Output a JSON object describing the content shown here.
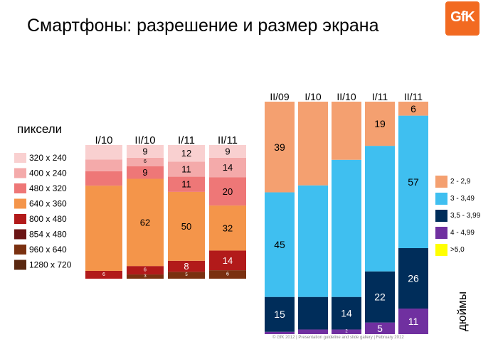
{
  "title": "Смартфоны: разрешение и размер экрана",
  "logo_text": "GfK",
  "footer": "© GfK 2012 | Presentation guideline and slide gallery | February 2012",
  "chart_data": [
    {
      "type": "bar",
      "stacked": true,
      "title": "пиксели",
      "categories": [
        "I/10",
        "II/10",
        "I/11",
        "II/11"
      ],
      "legend_position": "left",
      "series": [
        {
          "name": "1280 x 720",
          "color": "#5a2810",
          "values": [
            0,
            0,
            0,
            0
          ]
        },
        {
          "name": "960 x 640",
          "color": "#7a3010",
          "values": [
            0,
            3,
            5,
            6
          ]
        },
        {
          "name": "854 x 480",
          "color": "#6b1515",
          "values": [
            0,
            0,
            0,
            0
          ]
        },
        {
          "name": "800 x 480",
          "color": "#b21a1a",
          "values": [
            6,
            6,
            8,
            14
          ]
        },
        {
          "name": "640 x 360",
          "color": "#f4954a",
          "values": [
            65,
            62,
            50,
            32
          ]
        },
        {
          "name": "480 x 320",
          "color": "#ee7777",
          "values": [
            11,
            9,
            11,
            20
          ]
        },
        {
          "name": "400 x 240",
          "color": "#f4aaaa",
          "values": [
            9,
            6,
            11,
            14
          ]
        },
        {
          "name": "320 x 240",
          "color": "#f9d0d0",
          "values": [
            11,
            9,
            12,
            9
          ]
        }
      ],
      "data_labels": [
        [
          {
            "series": "800 x 480",
            "text": "6"
          }
        ],
        [
          {
            "series": "960 x 640",
            "text": "3"
          },
          {
            "series": "800 x 480",
            "text": "6"
          },
          {
            "series": "640 x 360",
            "text": "62"
          },
          {
            "series": "480 x 320",
            "text": "9"
          },
          {
            "series": "400 x 240",
            "text": "6"
          },
          {
            "series": "320 x 240",
            "text": "9"
          }
        ],
        [
          {
            "series": "960 x 640",
            "text": "5"
          },
          {
            "series": "800 x 480",
            "text": "8"
          },
          {
            "series": "640 x 360",
            "text": "50"
          },
          {
            "series": "480 x 320",
            "text": "11"
          },
          {
            "series": "400 x 240",
            "text": "11"
          },
          {
            "series": "320 x 240",
            "text": "12"
          }
        ],
        [
          {
            "series": "960 x 640",
            "text": "6"
          },
          {
            "series": "800 x 480",
            "text": "14"
          },
          {
            "series": "640 x 360",
            "text": "32"
          },
          {
            "series": "480 x 320",
            "text": "20"
          },
          {
            "series": "400 x 240",
            "text": "14"
          },
          {
            "series": "320 x 240",
            "text": "9"
          }
        ]
      ]
    },
    {
      "type": "bar",
      "stacked": true,
      "title": "дюймы",
      "categories": [
        "II/09",
        "I/10",
        "II/10",
        "I/11",
        "II/11"
      ],
      "legend_position": "right",
      "series": [
        {
          "name": ">5,0",
          "color": "#ffff00",
          "values": [
            0,
            0,
            0,
            0,
            0
          ]
        },
        {
          "name": "4 - 4,99",
          "color": "#7030a0",
          "values": [
            1,
            2,
            2,
            5,
            11
          ]
        },
        {
          "name": "3,5 - 3,99",
          "color": "#002d5a",
          "values": [
            15,
            14,
            14,
            22,
            26
          ]
        },
        {
          "name": "3 - 3,49",
          "color": "#3fbff0",
          "values": [
            45,
            48,
            59,
            54,
            57
          ]
        },
        {
          "name": "2 - 2,9",
          "color": "#f4a070",
          "values": [
            39,
            36,
            25,
            19,
            6
          ]
        }
      ],
      "data_labels": [
        [
          {
            "series": "3,5 - 3,99",
            "text": "15"
          },
          {
            "series": "3 - 3,49",
            "text": "45"
          },
          {
            "series": "2 - 2,9",
            "text": "39"
          }
        ],
        [],
        [
          {
            "series": "4 - 4,99",
            "text": "2"
          },
          {
            "series": "3,5 - 3,99",
            "text": "14"
          }
        ],
        [
          {
            "series": "4 - 4,99",
            "text": "5"
          },
          {
            "series": "3,5 - 3,99",
            "text": "22"
          },
          {
            "series": "2 - 2,9",
            "text": "19"
          }
        ],
        [
          {
            "series": "4 - 4,99",
            "text": "11"
          },
          {
            "series": "3,5 - 3,99",
            "text": "26"
          },
          {
            "series": "3 - 3,49",
            "text": "57"
          },
          {
            "series": "2 - 2,9",
            "text": "6"
          }
        ]
      ]
    }
  ]
}
